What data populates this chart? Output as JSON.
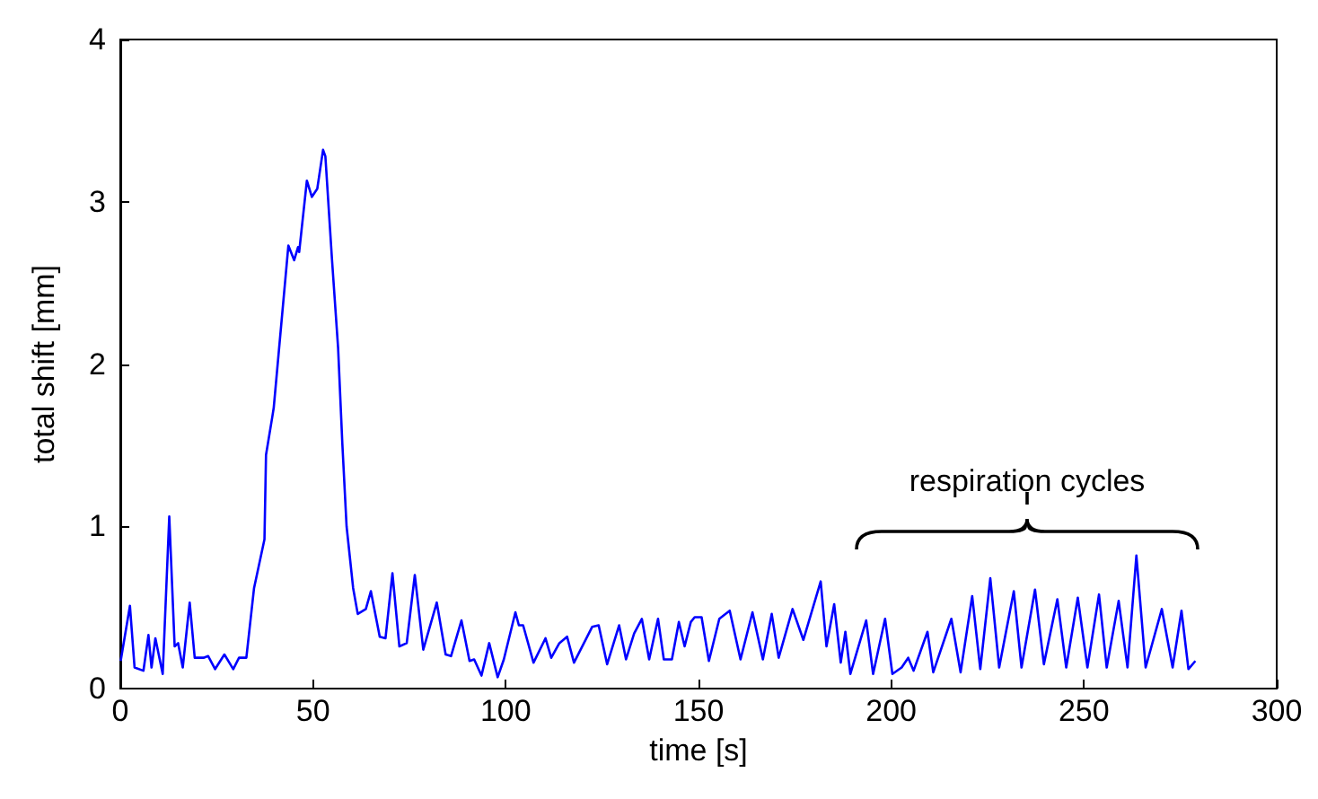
{
  "chart_data": {
    "type": "line",
    "xlabel": "time [s]",
    "ylabel": "total shift [mm]",
    "xlim": [
      0,
      300
    ],
    "xticks": [
      0,
      50,
      100,
      150,
      200,
      250,
      300
    ],
    "ylim": [
      0,
      4
    ],
    "yticks": [
      0,
      1,
      2,
      3,
      4
    ],
    "grid": false,
    "marker": "none",
    "line_style": "solid",
    "annotations": [
      "respiration cycles"
    ],
    "series": [
      {
        "color": "#0000ff",
        "x": [
          0.1,
          2.5,
          3.7,
          6.0,
          7.3,
          8.1,
          9.1,
          11.0,
          12.7,
          14.1,
          15.0,
          16.2,
          18.0,
          19.3,
          21.6,
          22.8,
          24.6,
          27.0,
          29.3,
          30.8,
          32.7,
          34.7,
          37.4,
          37.8,
          39.4,
          39.8,
          43.6,
          45.1,
          46.1,
          46.4,
          48.4,
          49.7,
          51.1,
          52.6,
          53.2,
          54.9,
          56.5,
          57.6,
          58.7,
          60.4,
          61.6,
          63.7,
          65.0,
          67.3,
          68.8,
          70.6,
          72.4,
          74.3,
          76.4,
          78.6,
          82.1,
          84.4,
          85.8,
          88.5,
          90.6,
          91.8,
          93.7,
          95.7,
          97.9,
          99.5,
          102.5,
          103.4,
          104.5,
          107.2,
          110.3,
          111.8,
          113.9,
          115.9,
          117.7,
          122.4,
          124.1,
          126.3,
          129.4,
          131.2,
          133.3,
          135.3,
          137.2,
          139.5,
          141.0,
          143.1,
          144.9,
          146.4,
          148.0,
          149.0,
          150.8,
          152.7,
          155.4,
          158.1,
          160.9,
          164.0,
          166.7,
          169.0,
          170.8,
          174.4,
          177.2,
          181.7,
          183.2,
          185.2,
          186.9,
          188.1,
          189.4,
          193.5,
          195.3,
          198.4,
          200.3,
          202.7,
          204.4,
          205.8,
          209.4,
          210.9,
          215.6,
          218.0,
          221.0,
          223.1,
          225.7,
          228.0,
          231.8,
          233.8,
          237.3,
          239.6,
          243.1,
          245.4,
          248.4,
          250.9,
          253.9,
          255.9,
          259.0,
          261.3,
          263.6,
          266.0,
          270.2,
          273.0,
          275.3,
          277.1,
          278.9
        ],
        "values": [
          0.17,
          0.51,
          0.13,
          0.11,
          0.33,
          0.13,
          0.31,
          0.09,
          1.06,
          0.26,
          0.28,
          0.13,
          0.53,
          0.19,
          0.19,
          0.2,
          0.12,
          0.21,
          0.12,
          0.19,
          0.19,
          0.62,
          0.92,
          1.44,
          1.67,
          1.73,
          2.73,
          2.64,
          2.72,
          2.69,
          3.13,
          3.03,
          3.08,
          3.32,
          3.28,
          2.65,
          2.1,
          1.51,
          1.0,
          0.62,
          0.46,
          0.49,
          0.6,
          0.32,
          0.31,
          0.71,
          0.26,
          0.28,
          0.7,
          0.24,
          0.53,
          0.21,
          0.2,
          0.42,
          0.17,
          0.18,
          0.08,
          0.28,
          0.07,
          0.18,
          0.47,
          0.39,
          0.39,
          0.16,
          0.31,
          0.19,
          0.28,
          0.32,
          0.16,
          0.38,
          0.39,
          0.15,
          0.39,
          0.18,
          0.34,
          0.43,
          0.18,
          0.43,
          0.18,
          0.18,
          0.41,
          0.26,
          0.41,
          0.44,
          0.44,
          0.17,
          0.43,
          0.48,
          0.18,
          0.47,
          0.18,
          0.46,
          0.19,
          0.49,
          0.3,
          0.66,
          0.26,
          0.52,
          0.16,
          0.35,
          0.09,
          0.42,
          0.09,
          0.43,
          0.09,
          0.13,
          0.19,
          0.11,
          0.35,
          0.1,
          0.43,
          0.1,
          0.57,
          0.12,
          0.68,
          0.13,
          0.6,
          0.13,
          0.61,
          0.15,
          0.55,
          0.13,
          0.56,
          0.13,
          0.58,
          0.13,
          0.54,
          0.13,
          0.82,
          0.13,
          0.49,
          0.13,
          0.48,
          0.12,
          0.17
        ]
      }
    ]
  }
}
